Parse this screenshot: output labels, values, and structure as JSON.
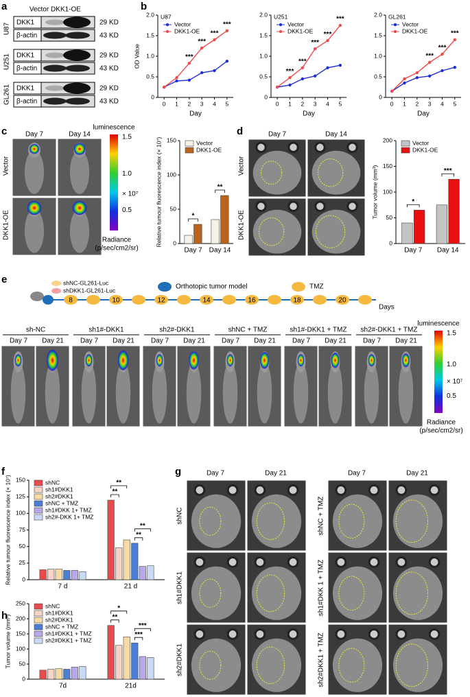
{
  "panel_labels": [
    "a",
    "b",
    "c",
    "d",
    "e",
    "f",
    "g",
    "h"
  ],
  "western_blot": {
    "columns": [
      "Vector",
      "DKK1-OE"
    ],
    "groups": [
      {
        "cell_line": "U87",
        "rows": [
          {
            "protein": "DKK1",
            "size": "29 KD"
          },
          {
            "protein": "β-actin",
            "size": "43 KD"
          }
        ]
      },
      {
        "cell_line": "U251",
        "rows": [
          {
            "protein": "DKK1",
            "size": "29 KD"
          },
          {
            "protein": "β-actin",
            "size": "43 KD"
          }
        ]
      },
      {
        "cell_line": "GL261",
        "rows": [
          {
            "protein": "DKK1",
            "size": "29 KD"
          },
          {
            "protein": "β-actin",
            "size": "43 KD"
          }
        ]
      }
    ]
  },
  "imaging_c": {
    "days": [
      "Day 7",
      "Day 14"
    ],
    "groups": [
      "Vector",
      "DKK1-OE"
    ]
  },
  "colorbar_c": {
    "title": "luminescence",
    "ticks": [
      "1.5",
      "1.0",
      "0.5"
    ],
    "scale": "× 10⁷",
    "unit": [
      "Radiance",
      "(p/sec/cm2/sr)"
    ]
  },
  "mri_d": {
    "days": [
      "Day 7",
      "Day 14"
    ],
    "groups": [
      "Vector",
      "DKK1-OE"
    ]
  },
  "timeline_e": {
    "legend": [
      "shNC-GL261-Luc",
      "shDKK1-GL261-Luc",
      "Orthotopic tumor model",
      "TMZ"
    ],
    "days": [
      "8",
      "10",
      "12",
      "14",
      "16",
      "18",
      "20"
    ],
    "unit": "Days"
  },
  "imaging_e": {
    "groups": [
      "sh-NC",
      "sh1#-DKK1",
      "sh2#-DKK1",
      "shNC + TMZ",
      "sh1#-DKK1 + TMZ",
      "sh2#-DKK1 + TMZ"
    ],
    "days": [
      "Day 7",
      "Day 21"
    ]
  },
  "colorbar_e": {
    "title": "luminescence",
    "ticks": [
      "1.5",
      "1.0",
      "0.5"
    ],
    "scale": "× 10⁷",
    "unit": [
      "Radiance",
      "(p/sec/cm2/sr)"
    ]
  },
  "mri_g": {
    "days": [
      "Day 7",
      "Day 21"
    ],
    "left_groups": [
      "shNC",
      "sh1#DKK1",
      "sh2#DKK1"
    ],
    "right_groups": [
      "shNC + TMZ",
      "sh1#DKK 1 + TMZ",
      "sh2#DKK1 + TMZ"
    ]
  },
  "chart_data": [
    {
      "type": "line",
      "title": "U87",
      "y_label": "OD Value",
      "x_label": "Day",
      "x": [
        0,
        1,
        2,
        3,
        4,
        5
      ],
      "xlim": [
        -0.5,
        5.5
      ],
      "xticks": [
        0,
        1,
        2,
        3,
        4,
        5
      ],
      "ylim": [
        0,
        2
      ],
      "yticks": [
        0,
        0.5,
        {
          "value": 1,
          "label": "1.0"
        },
        1.5,
        {
          "value": 2,
          "label": "2.0"
        }
      ],
      "legend": "upper left",
      "series": [
        {
          "name": "Vector",
          "color": "#1f2fd6",
          "values": [
            0.25,
            0.4,
            0.42,
            0.6,
            0.65,
            0.88
          ]
        },
        {
          "name": "DKK1-OE",
          "color": "#f04a4a",
          "values": [
            0.25,
            0.48,
            0.83,
            1.2,
            1.4,
            1.62
          ]
        }
      ],
      "annotations": [
        {
          "text": "***",
          "x": 2
        },
        {
          "text": "***",
          "x": 3
        },
        {
          "text": "***",
          "x": 4
        },
        {
          "text": "***",
          "x": 5
        }
      ]
    },
    {
      "type": "line",
      "title": "U251",
      "x_label": "Day",
      "x": [
        0,
        1,
        2,
        3,
        4,
        5
      ],
      "xlim": [
        -0.5,
        5.5
      ],
      "xticks": [
        0,
        1,
        2,
        3,
        4,
        5
      ],
      "ylim": [
        0,
        2
      ],
      "yticks": [
        0,
        0.5,
        {
          "value": 1,
          "label": "1.0"
        },
        1.5,
        {
          "value": 2,
          "label": "2.0"
        }
      ],
      "legend": "upper left",
      "series": [
        {
          "name": "Vector",
          "color": "#1f2fd6",
          "values": [
            0.25,
            0.3,
            0.45,
            0.52,
            0.72,
            0.78
          ]
        },
        {
          "name": "DKK1-OE",
          "color": "#f04a4a",
          "values": [
            0.25,
            0.48,
            0.72,
            1.18,
            1.38,
            1.75
          ]
        }
      ],
      "annotations": [
        {
          "text": "***",
          "x": 1
        },
        {
          "text": "***",
          "x": 2
        },
        {
          "text": "***",
          "x": 3
        },
        {
          "text": "***",
          "x": 4
        },
        {
          "text": "***",
          "x": 5
        }
      ]
    },
    {
      "type": "line",
      "title": "GL261",
      "x_label": "Day",
      "x": [
        0,
        1,
        2,
        3,
        4,
        5
      ],
      "xlim": [
        -0.5,
        5.5
      ],
      "xticks": [
        0,
        1,
        2,
        3,
        4,
        5
      ],
      "ylim": [
        0,
        2
      ],
      "yticks": [
        0,
        0.5,
        {
          "value": 1,
          "label": "1.0"
        },
        1.5,
        {
          "value": 2,
          "label": "2.0"
        }
      ],
      "legend": "upper left",
      "series": [
        {
          "name": "Vector",
          "color": "#1f2fd6",
          "values": [
            0.15,
            0.35,
            0.48,
            0.52,
            0.65,
            0.73
          ]
        },
        {
          "name": "DKK1-OE",
          "color": "#f04a4a",
          "values": [
            0.15,
            0.45,
            0.6,
            0.85,
            1.05,
            1.4
          ]
        }
      ],
      "annotations": [
        {
          "text": "***",
          "x": 3
        },
        {
          "text": "***",
          "x": 4
        },
        {
          "text": "***",
          "x": 5
        }
      ]
    },
    {
      "type": "bar",
      "y_label": "Relative tumour fluorescence index (× 10⁷)",
      "categories": [
        "Day 7",
        "Day 14"
      ],
      "ylim": [
        0,
        150
      ],
      "yticks": [
        0,
        50,
        100,
        150
      ],
      "legend": "upper left",
      "series": [
        {
          "name": "Vector",
          "color": "#f7f2e8",
          "values": [
            12,
            35
          ]
        },
        {
          "name": "DKK1-OE",
          "color": "#b8641e",
          "values": [
            28,
            70
          ]
        }
      ],
      "annotations": [
        {
          "text": "*",
          "category": "Day 7",
          "series": [
            "Vector",
            "DKK1-OE"
          ]
        },
        {
          "text": "**",
          "category": "Day 14",
          "series": [
            "Vector",
            "DKK1-OE"
          ]
        }
      ]
    },
    {
      "type": "bar",
      "y_label": "Tumor volume (mm³)",
      "categories": [
        "Day 7",
        "Day 14"
      ],
      "ylim": [
        0,
        200
      ],
      "yticks": [
        0,
        50,
        100,
        150,
        200
      ],
      "legend": "upper left",
      "series": [
        {
          "name": "Vector",
          "color": "#c4c4c4",
          "values": [
            40,
            75
          ]
        },
        {
          "name": "DKK1-OE",
          "color": "#e81010",
          "values": [
            65,
            125
          ]
        }
      ],
      "annotations": [
        {
          "text": "*",
          "category": "Day 7",
          "series": [
            "Vector",
            "DKK1-OE"
          ]
        },
        {
          "text": "***",
          "category": "Day 14",
          "series": [
            "Vector",
            "DKK1-OE"
          ]
        }
      ]
    },
    {
      "type": "bar",
      "y_label": "Relative tumour fluorescence index (× 10⁷)",
      "categories": [
        "7 d",
        "21 d"
      ],
      "ylim": [
        0,
        150
      ],
      "yticks": [
        0,
        25,
        50,
        75,
        100,
        125,
        150
      ],
      "legend": "upper left",
      "series": [
        {
          "name": "shNC",
          "color": "#e84b4b",
          "values": [
            15,
            120
          ]
        },
        {
          "name": "sh1#DKK1",
          "color": "#f8d4c6",
          "values": [
            16,
            48
          ]
        },
        {
          "name": "sh2#DKK1",
          "color": "#f6dba7",
          "values": [
            16,
            60
          ]
        },
        {
          "name": "shNC + TMZ",
          "color": "#4a7fd6",
          "values": [
            14,
            55
          ]
        },
        {
          "name": "sh1#DKK 1+ TMZ",
          "color": "#b9a8ea",
          "values": [
            14,
            20
          ]
        },
        {
          "name": "sh2#-DKK 1+ TMZ",
          "color": "#c8daf6",
          "values": [
            12,
            21
          ]
        }
      ],
      "annotations": [
        {
          "text": "**",
          "category": "21 d",
          "series": [
            "shNC",
            "sh1#DKK1"
          ]
        },
        {
          "text": "**",
          "category": "21 d",
          "series": [
            "shNC",
            "sh2#DKK1"
          ]
        },
        {
          "text": "**",
          "category": "21 d",
          "series": [
            "shNC + TMZ",
            "sh1#DKK 1+ TMZ"
          ]
        },
        {
          "text": "**",
          "category": "21 d",
          "series": [
            "shNC + TMZ",
            "sh2#-DKK 1+ TMZ"
          ]
        }
      ]
    },
    {
      "type": "bar",
      "y_label": "Tumor volume (mm³)",
      "categories": [
        "7d",
        "21d"
      ],
      "ylim": [
        0,
        250
      ],
      "yticks": [
        0,
        50,
        100,
        150,
        200,
        250
      ],
      "legend": "upper left",
      "series": [
        {
          "name": "shNC",
          "color": "#e84b4b",
          "values": [
            30,
            178
          ]
        },
        {
          "name": "sh1#DKK1",
          "color": "#f8d4c6",
          "values": [
            33,
            112
          ]
        },
        {
          "name": "sh2#DKK1",
          "color": "#f6dba7",
          "values": [
            35,
            140
          ]
        },
        {
          "name": "shNC + TMZ",
          "color": "#4a7fd6",
          "values": [
            33,
            120
          ]
        },
        {
          "name": "sh1#DKK1 + TMZ",
          "color": "#b9a8ea",
          "values": [
            40,
            75
          ]
        },
        {
          "name": "sh2#DKK1 + TMZ",
          "color": "#c8daf6",
          "values": [
            42,
            72
          ]
        }
      ],
      "annotations": [
        {
          "text": "**",
          "category": "21d",
          "series": [
            "shNC",
            "sh1#DKK1"
          ]
        },
        {
          "text": "*",
          "category": "21d",
          "series": [
            "shNC",
            "sh2#DKK1"
          ]
        },
        {
          "text": "***",
          "category": "21d",
          "series": [
            "shNC + TMZ",
            "sh1#DKK1 + TMZ"
          ]
        },
        {
          "text": "***",
          "category": "21d",
          "series": [
            "shNC + TMZ",
            "sh2#DKK1 + TMZ"
          ]
        }
      ]
    }
  ]
}
